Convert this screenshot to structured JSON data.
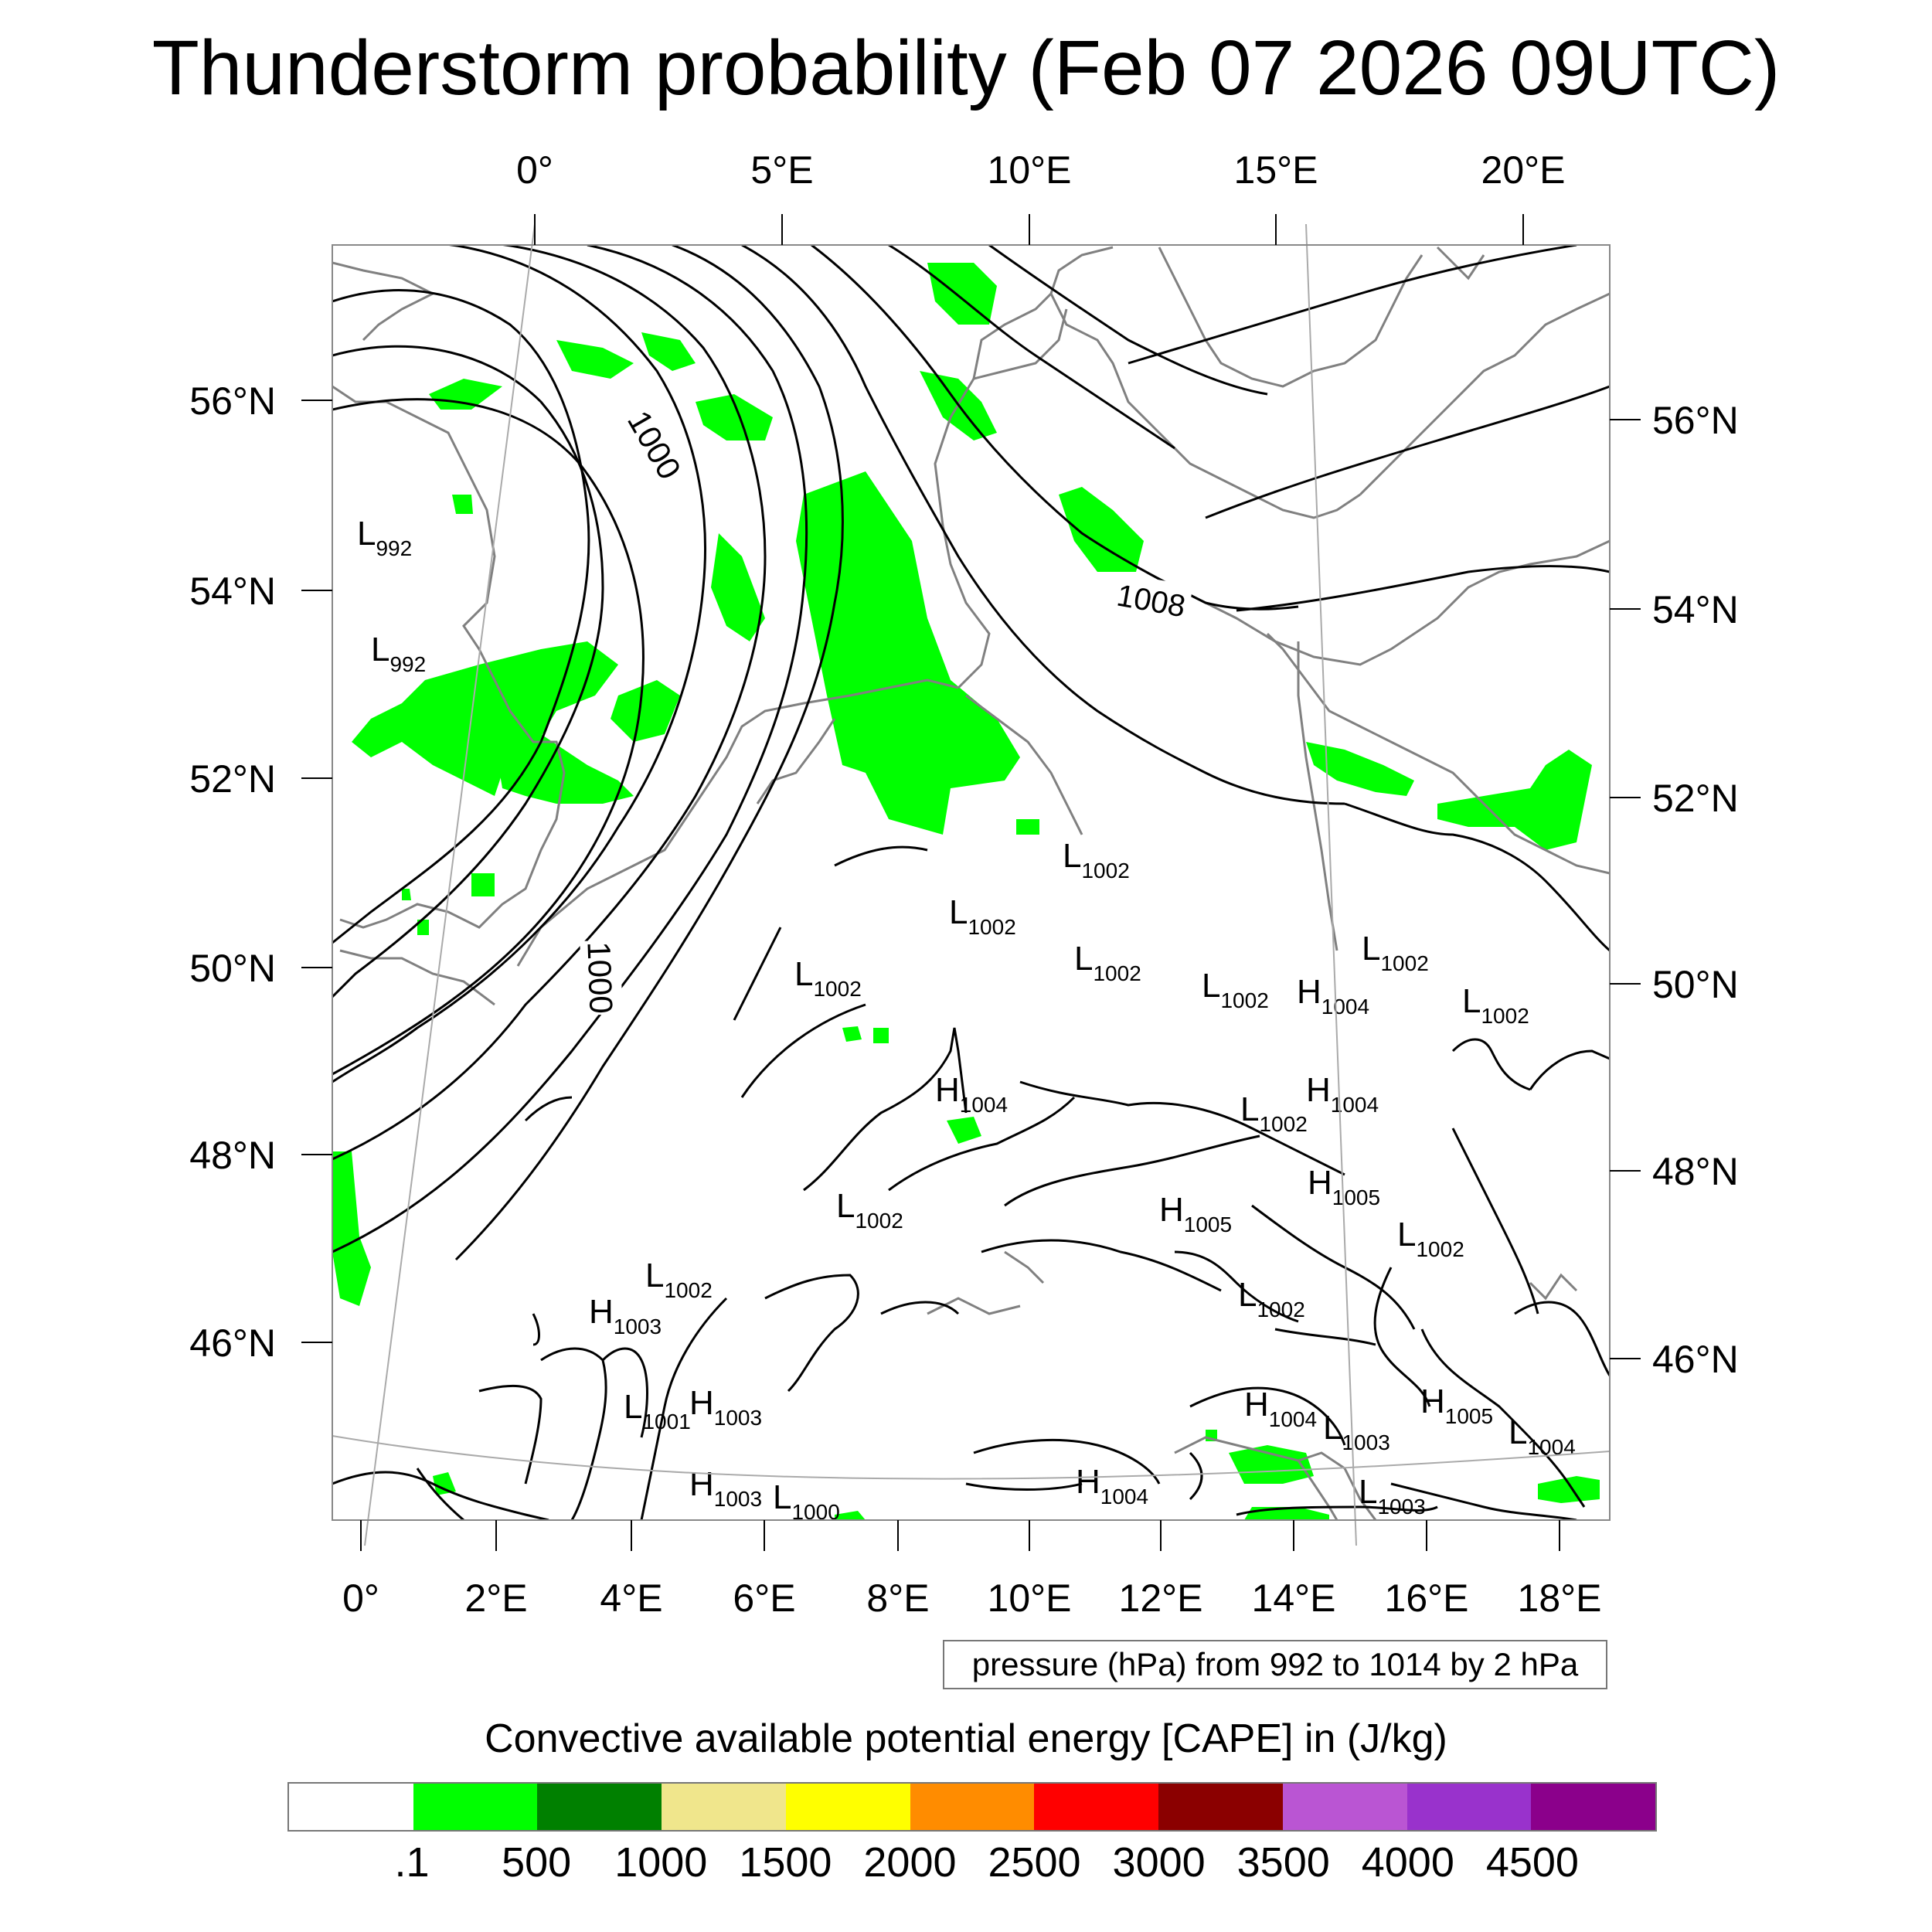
{
  "title": "Thunderstorm probability (Feb 07 2026 09UTC)",
  "map": {
    "top_lon_ticks": [
      "0°",
      "5°E",
      "10°E",
      "15°E",
      "20°E"
    ],
    "bottom_lon_ticks": [
      "0°",
      "2°E",
      "4°E",
      "6°E",
      "8°E",
      "10°E",
      "12°E",
      "14°E",
      "16°E",
      "18°E"
    ],
    "left_lat_ticks": [
      "56°N",
      "54°N",
      "52°N",
      "50°N",
      "48°N",
      "46°N"
    ],
    "right_lat_ticks": [
      "56°N",
      "54°N",
      "52°N",
      "50°N",
      "48°N",
      "46°N"
    ],
    "contour_labels": [
      "1000",
      "1000",
      "1008"
    ],
    "pressure_markers": [
      {
        "kind": "L",
        "value": "992"
      },
      {
        "kind": "L",
        "value": "992"
      },
      {
        "kind": "L",
        "value": "1002"
      },
      {
        "kind": "L",
        "value": "1002"
      },
      {
        "kind": "L",
        "value": "1002"
      },
      {
        "kind": "L",
        "value": "1002"
      },
      {
        "kind": "L",
        "value": "1002"
      },
      {
        "kind": "H",
        "value": "1004"
      },
      {
        "kind": "L",
        "value": "1002"
      },
      {
        "kind": "L",
        "value": "1002"
      },
      {
        "kind": "H",
        "value": "1004"
      },
      {
        "kind": "H",
        "value": "1004"
      },
      {
        "kind": "L",
        "value": "1002"
      },
      {
        "kind": "L",
        "value": "1002"
      },
      {
        "kind": "H",
        "value": "1005"
      },
      {
        "kind": "H",
        "value": "1005"
      },
      {
        "kind": "L",
        "value": "1002"
      },
      {
        "kind": "L",
        "value": "1002"
      },
      {
        "kind": "L",
        "value": "1002"
      },
      {
        "kind": "H",
        "value": "1003"
      },
      {
        "kind": "L",
        "value": "1001"
      },
      {
        "kind": "H",
        "value": "1003"
      },
      {
        "kind": "H",
        "value": "1004"
      },
      {
        "kind": "L",
        "value": "1003"
      },
      {
        "kind": "H",
        "value": "1005"
      },
      {
        "kind": "L",
        "value": "1004"
      },
      {
        "kind": "H",
        "value": "1003"
      },
      {
        "kind": "L",
        "value": "1000"
      },
      {
        "kind": "H",
        "value": "1004"
      },
      {
        "kind": "L",
        "value": "1003"
      }
    ],
    "colors": {
      "contour": "#000000",
      "coast": "#808080",
      "cape_low": "#00ff00"
    }
  },
  "caption": "pressure (hPa) from 992 to 1014 by 2 hPa",
  "colorbar": {
    "title": "Convective available potential energy [CAPE] in (J/kg)",
    "colors": [
      "#ffffff",
      "#00ff00",
      "#008000",
      "#f0e68c",
      "#ffff00",
      "#ff8c00",
      "#ff0000",
      "#8b0000",
      "#ba55d3",
      "#9932cc",
      "#8b008b"
    ],
    "labels": [
      ".1",
      "500",
      "1000",
      "1500",
      "2000",
      "2500",
      "3000",
      "3500",
      "4000",
      "4500"
    ]
  }
}
